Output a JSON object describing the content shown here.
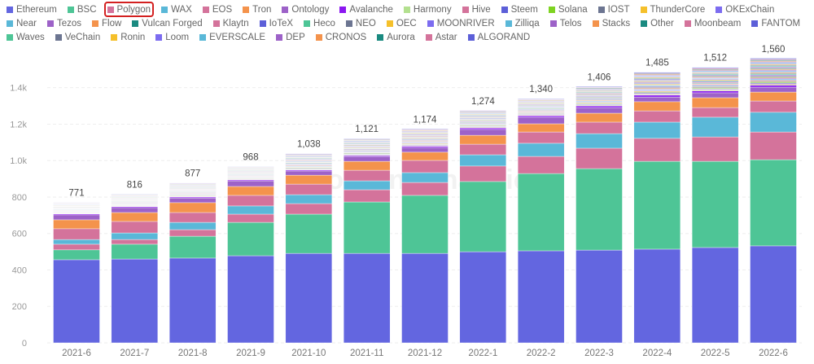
{
  "chart_data": {
    "type": "bar",
    "stacked": true,
    "title": "",
    "xlabel": "",
    "ylabel": "",
    "ylim": [
      0,
      1600
    ],
    "yticks": [
      "0",
      "200",
      "400",
      "600",
      "800",
      "1.0k",
      "1.2k",
      "1.4k"
    ],
    "grid": true,
    "legend_position": "top",
    "highlighted_legend": "Polygon",
    "highlight_color": "#d32020",
    "watermark": "Footprint Analytics",
    "categories": [
      "2021-6",
      "2021-7",
      "2021-8",
      "2021-9",
      "2021-10",
      "2021-11",
      "2021-12",
      "2022-1",
      "2022-2",
      "2022-3",
      "2022-4",
      "2022-5",
      "2022-6"
    ],
    "totals": [
      "771",
      "816",
      "877",
      "968",
      "1,038",
      "1,121",
      "1,174",
      "1,274",
      "1,340",
      "1,406",
      "1,485",
      "1,512",
      "1,560"
    ],
    "series": [
      {
        "name": "Ethereum",
        "color": "#6366e0",
        "values": [
          456,
          460,
          465,
          478,
          491,
          491,
          491,
          500,
          505,
          509,
          514,
          523,
          532
        ]
      },
      {
        "name": "BSC",
        "color": "#4ec596",
        "values": [
          54,
          81,
          120,
          183,
          215,
          282,
          318,
          385,
          424,
          447,
          482,
          473,
          473
        ]
      },
      {
        "name": "Polygon",
        "color": "#d4739b",
        "values": [
          31,
          26,
          36,
          45,
          58,
          67,
          71,
          85,
          94,
          112,
          126,
          134,
          152
        ]
      },
      {
        "name": "WAX",
        "color": "#5ab8d8",
        "values": [
          26,
          36,
          40,
          45,
          49,
          49,
          54,
          62,
          72,
          80,
          89,
          108,
          108
        ]
      },
      {
        "name": "EOS",
        "color": "#d4739b",
        "values": [
          59,
          63,
          54,
          58,
          58,
          58,
          67,
          58,
          62,
          63,
          62,
          53,
          62
        ]
      },
      {
        "name": "Tron",
        "color": "#f4934c",
        "values": [
          49,
          49,
          54,
          49,
          49,
          49,
          45,
          49,
          45,
          49,
          50,
          54,
          49
        ]
      },
      {
        "name": "Ontology",
        "color": "#9d62c8",
        "values": [
          27,
          27,
          26,
          31,
          23,
          27,
          26,
          32,
          36,
          31,
          26,
          27,
          27
        ]
      },
      {
        "name": "Avalanche",
        "color": "#8b17f0",
        "values": [
          5,
          5,
          5,
          5,
          5,
          5,
          6,
          8,
          8,
          9,
          10,
          10,
          10
        ]
      },
      {
        "name": "Harmony",
        "color": "#b3e08f",
        "values": [
          1.9,
          2.1,
          2.3,
          2.2,
          2.7,
          2.8,
          2.9,
          2.9,
          2.8,
          3.2,
          3.8,
          3.9,
          4.5
        ]
      },
      {
        "name": "Hive",
        "color": "#d4739b",
        "values": [
          1.9,
          2.1,
          2.3,
          2.2,
          2.7,
          2.8,
          2.9,
          2.9,
          2.8,
          3.2,
          3.8,
          3.9,
          4.5
        ]
      },
      {
        "name": "Steem",
        "color": "#5c5fd8",
        "values": [
          1.9,
          2.1,
          2.3,
          2.2,
          2.7,
          2.8,
          2.9,
          2.9,
          2.8,
          3.2,
          3.8,
          3.9,
          4.5
        ]
      },
      {
        "name": "Solana",
        "color": "#7ed321",
        "values": [
          1.9,
          2.1,
          2.3,
          2.2,
          2.7,
          2.8,
          2.9,
          2.9,
          2.8,
          3.2,
          3.8,
          3.9,
          4.5
        ]
      },
      {
        "name": "IOST",
        "color": "#6c7591",
        "values": [
          1.9,
          2.1,
          2.3,
          2.2,
          2.7,
          2.8,
          2.9,
          2.9,
          2.8,
          3.2,
          3.8,
          3.9,
          4.5
        ]
      },
      {
        "name": "ThunderCore",
        "color": "#f5c02b",
        "values": [
          1.9,
          2.1,
          2.3,
          2.2,
          2.7,
          2.8,
          2.9,
          2.9,
          2.8,
          3.2,
          3.8,
          3.9,
          4.5
        ]
      },
      {
        "name": "OKExChain",
        "color": "#7c6cf0",
        "values": [
          1.9,
          2.1,
          2.3,
          2.2,
          2.7,
          2.8,
          2.9,
          2.9,
          2.8,
          3.2,
          3.8,
          3.9,
          4.5
        ]
      },
      {
        "name": "Near",
        "color": "#5ab8d8",
        "values": [
          1.9,
          2.1,
          2.3,
          2.2,
          2.7,
          2.8,
          2.9,
          2.9,
          2.8,
          3.2,
          3.8,
          3.9,
          4.5
        ]
      },
      {
        "name": "Tezos",
        "color": "#9d62c8",
        "values": [
          1.9,
          2.1,
          2.3,
          2.2,
          2.7,
          2.8,
          2.9,
          2.9,
          2.8,
          3.2,
          3.8,
          3.9,
          4.5
        ]
      },
      {
        "name": "Flow",
        "color": "#f4934c",
        "values": [
          1.9,
          2.1,
          2.3,
          2.2,
          2.7,
          2.8,
          2.9,
          2.9,
          2.8,
          3.2,
          3.8,
          3.9,
          4.5
        ]
      },
      {
        "name": "Vulcan Forged",
        "color": "#1a8a80",
        "values": [
          1.9,
          2.1,
          2.3,
          2.2,
          2.7,
          2.8,
          2.9,
          2.9,
          2.8,
          3.2,
          3.8,
          3.9,
          4.5
        ]
      },
      {
        "name": "Klaytn",
        "color": "#d4739b",
        "values": [
          1.9,
          2.1,
          2.3,
          2.2,
          2.7,
          2.8,
          2.9,
          2.9,
          2.8,
          3.2,
          3.8,
          3.9,
          4.5
        ]
      },
      {
        "name": "IoTeX",
        "color": "#5c5fd8",
        "values": [
          1.9,
          2.1,
          2.3,
          2.2,
          2.7,
          2.8,
          2.9,
          2.9,
          2.8,
          3.2,
          3.8,
          3.9,
          4.5
        ]
      },
      {
        "name": "Heco",
        "color": "#4ec596",
        "values": [
          1.9,
          2.1,
          2.3,
          2.2,
          2.7,
          2.8,
          2.9,
          2.9,
          2.8,
          3.2,
          3.8,
          3.9,
          4.5
        ]
      },
      {
        "name": "NEO",
        "color": "#6c7591",
        "values": [
          1.9,
          2.1,
          2.3,
          2.2,
          2.7,
          2.8,
          2.9,
          2.9,
          2.8,
          3.2,
          3.8,
          3.9,
          4.5
        ]
      },
      {
        "name": "OEC",
        "color": "#f5c02b",
        "values": [
          1.9,
          2.1,
          2.3,
          2.2,
          2.7,
          2.8,
          2.9,
          2.9,
          2.8,
          3.2,
          3.8,
          3.9,
          4.5
        ]
      },
      {
        "name": "MOONRIVER",
        "color": "#7c6cf0",
        "values": [
          1.9,
          2.1,
          2.3,
          2.2,
          2.7,
          2.8,
          2.9,
          2.9,
          2.8,
          3.2,
          3.8,
          3.9,
          4.5
        ]
      },
      {
        "name": "Zilliqa",
        "color": "#5ab8d8",
        "values": [
          1.9,
          2.1,
          2.3,
          2.2,
          2.7,
          2.8,
          2.9,
          2.9,
          2.8,
          3.2,
          3.8,
          3.9,
          4.5
        ]
      },
      {
        "name": "Telos",
        "color": "#9d62c8",
        "values": [
          1.9,
          2.1,
          2.3,
          2.2,
          2.7,
          2.8,
          2.9,
          2.9,
          2.8,
          3.2,
          3.8,
          3.9,
          4.5
        ]
      },
      {
        "name": "Stacks",
        "color": "#f4934c",
        "values": [
          1.9,
          2.1,
          2.3,
          2.2,
          2.7,
          2.8,
          2.9,
          2.9,
          2.8,
          3.2,
          3.8,
          3.9,
          4.5
        ]
      },
      {
        "name": "Other",
        "color": "#1a8a80",
        "values": [
          1.9,
          2.1,
          2.3,
          2.2,
          2.7,
          2.8,
          2.9,
          2.9,
          2.8,
          3.2,
          3.8,
          3.9,
          4.5
        ]
      },
      {
        "name": "Moonbeam",
        "color": "#d4739b",
        "values": [
          1.9,
          2.1,
          2.3,
          2.2,
          2.7,
          2.8,
          2.9,
          2.9,
          2.8,
          3.2,
          3.8,
          3.9,
          4.5
        ]
      },
      {
        "name": "FANTOM",
        "color": "#5c5fd8",
        "values": [
          1.9,
          2.1,
          2.3,
          2.2,
          2.7,
          2.8,
          2.9,
          2.9,
          2.8,
          3.2,
          3.8,
          3.9,
          4.5
        ]
      },
      {
        "name": "Waves",
        "color": "#4ec596",
        "values": [
          1.9,
          2.1,
          2.3,
          2.2,
          2.7,
          2.8,
          2.9,
          2.9,
          2.8,
          3.2,
          3.8,
          3.9,
          4.5
        ]
      },
      {
        "name": "VeChain",
        "color": "#6c7591",
        "values": [
          1.9,
          2.1,
          2.3,
          2.2,
          2.7,
          2.8,
          2.9,
          2.9,
          2.8,
          3.2,
          3.8,
          3.9,
          4.5
        ]
      },
      {
        "name": "Ronin",
        "color": "#f5c02b",
        "values": [
          1.9,
          2.1,
          2.3,
          2.2,
          2.7,
          2.8,
          2.9,
          2.9,
          2.8,
          3.2,
          3.8,
          3.9,
          4.5
        ]
      },
      {
        "name": "Loom",
        "color": "#7c6cf0",
        "values": [
          1.9,
          2.1,
          2.3,
          2.2,
          2.7,
          2.8,
          2.9,
          2.9,
          2.8,
          3.2,
          3.8,
          3.9,
          4.5
        ]
      },
      {
        "name": "EVERSCALE",
        "color": "#5ab8d8",
        "values": [
          1.9,
          2.1,
          2.3,
          2.2,
          2.7,
          2.8,
          2.9,
          2.9,
          2.8,
          3.2,
          3.8,
          3.9,
          4.5
        ]
      },
      {
        "name": "DEP",
        "color": "#9d62c8",
        "values": [
          1.9,
          2.1,
          2.3,
          2.2,
          2.7,
          2.8,
          2.9,
          2.9,
          2.8,
          3.2,
          3.8,
          3.9,
          4.5
        ]
      },
      {
        "name": "CRONOS",
        "color": "#f4934c",
        "values": [
          1.9,
          2.1,
          2.3,
          2.2,
          2.7,
          2.8,
          2.9,
          2.9,
          2.8,
          3.2,
          3.8,
          3.9,
          4.5
        ]
      },
      {
        "name": "Aurora",
        "color": "#1a8a80",
        "values": [
          1.9,
          2.1,
          2.3,
          2.2,
          2.7,
          2.8,
          2.9,
          2.9,
          2.8,
          3.2,
          3.8,
          3.9,
          4.5
        ]
      },
      {
        "name": "Astar",
        "color": "#d4739b",
        "values": [
          1.9,
          2.1,
          2.3,
          2.2,
          2.7,
          2.8,
          2.9,
          2.9,
          2.8,
          3.2,
          3.8,
          3.9,
          4.5
        ]
      },
      {
        "name": "ALGORAND",
        "color": "#5c5fd8",
        "values": [
          1.9,
          2.1,
          2.3,
          2.2,
          2.7,
          2.8,
          2.9,
          2.9,
          2.8,
          3.2,
          3.8,
          3.9,
          4.5
        ]
      }
    ]
  }
}
